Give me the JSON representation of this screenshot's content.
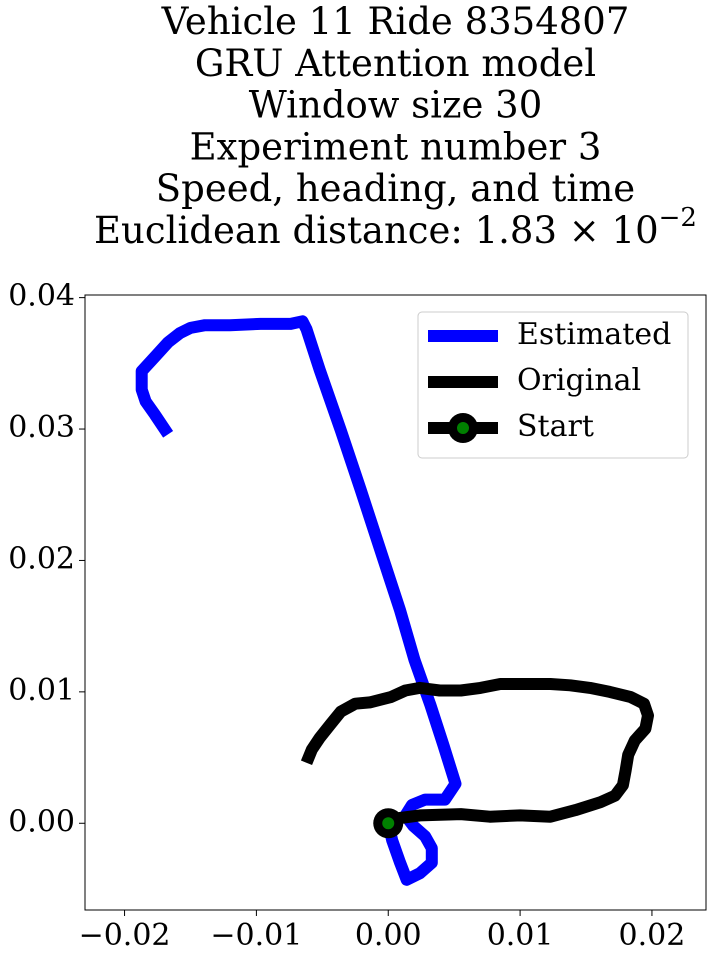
{
  "chart_data": {
    "type": "line",
    "title": [
      "Vehicle 11 Ride 8354807",
      "GRU Attention model",
      "Window size 30",
      "Experiment number 3",
      "Speed, heading, and time",
      "Euclidean distance: 1.83 × 10"
    ],
    "title_superscript": "−2",
    "xlim": [
      -0.023,
      0.0241
    ],
    "ylim": [
      -0.0066,
      0.0402
    ],
    "xticks": [
      {
        "value": -0.02,
        "label": "−0.02"
      },
      {
        "value": -0.01,
        "label": "−0.01"
      },
      {
        "value": 0,
        "label": "0.00"
      },
      0.01,
      0.02
    ],
    "yticks": [
      {
        "value": 0,
        "label": "0.00"
      },
      0.01,
      0.02,
      0.03,
      0.04
    ],
    "legend": "upper right",
    "series": [
      {
        "name": "Estimated",
        "color": "#0000ff",
        "x": [
          0,
          0.0003,
          0.0009,
          0.0014,
          0.0024,
          0.0033,
          0.0033,
          0.0028,
          0.0019,
          0.0013,
          0.0018,
          0.0028,
          0.0043,
          0.0051,
          0.0042,
          0.0032,
          0.002,
          0.0009,
          -0.0006,
          -0.0021,
          -0.0036,
          -0.0052,
          -0.0062,
          -0.0065,
          -0.0074,
          -0.0097,
          -0.012,
          -0.0139,
          -0.015,
          -0.0158,
          -0.0167,
          -0.0177,
          -0.0187,
          -0.0187,
          -0.0184,
          -0.0177,
          -0.0167
        ],
        "y": [
          0,
          -0.0013,
          -0.003,
          -0.0043,
          -0.0038,
          -0.003,
          -0.0019,
          -0.001,
          -0.0002,
          0.0006,
          0.0014,
          0.0018,
          0.0018,
          0.003,
          0.0059,
          0.009,
          0.0124,
          0.0162,
          0.0208,
          0.0254,
          0.0299,
          0.0345,
          0.0376,
          0.0382,
          0.038,
          0.038,
          0.0379,
          0.0379,
          0.0377,
          0.0373,
          0.0366,
          0.0355,
          0.0344,
          0.033,
          0.0321,
          0.0311,
          0.0296
        ]
      },
      {
        "name": "Original",
        "color": "#000000",
        "x": [
          0,
          0.0009,
          0.0024,
          0.0055,
          0.0077,
          0.01,
          0.0123,
          0.0142,
          0.0161,
          0.0172,
          0.0178,
          0.018,
          0.0182,
          0.0187,
          0.0195,
          0.0197,
          0.0194,
          0.0184,
          0.0168,
          0.0153,
          0.0138,
          0.0123,
          0.01,
          0.0085,
          0.007,
          0.0055,
          0.0039,
          0.0024,
          0.0013,
          0.0002,
          -0.0014,
          -0.0025,
          -0.0036,
          -0.0044,
          -0.0052,
          -0.0058,
          -0.0062
        ],
        "y": [
          0,
          0.0004,
          0.0006,
          0.0007,
          0.0005,
          0.0006,
          0.0005,
          0.001,
          0.0016,
          0.0021,
          0.0029,
          0.004,
          0.0052,
          0.0063,
          0.0072,
          0.0082,
          0.0091,
          0.0096,
          0.01,
          0.0103,
          0.0105,
          0.0106,
          0.0106,
          0.0106,
          0.0103,
          0.0101,
          0.0101,
          0.0103,
          0.0101,
          0.0096,
          0.0092,
          0.0091,
          0.0085,
          0.0075,
          0.0065,
          0.0056,
          0.0046
        ]
      },
      {
        "name": "Start",
        "color": "#000000",
        "marker_color": "#008000",
        "x": [
          0
        ],
        "y": [
          0
        ]
      }
    ]
  }
}
